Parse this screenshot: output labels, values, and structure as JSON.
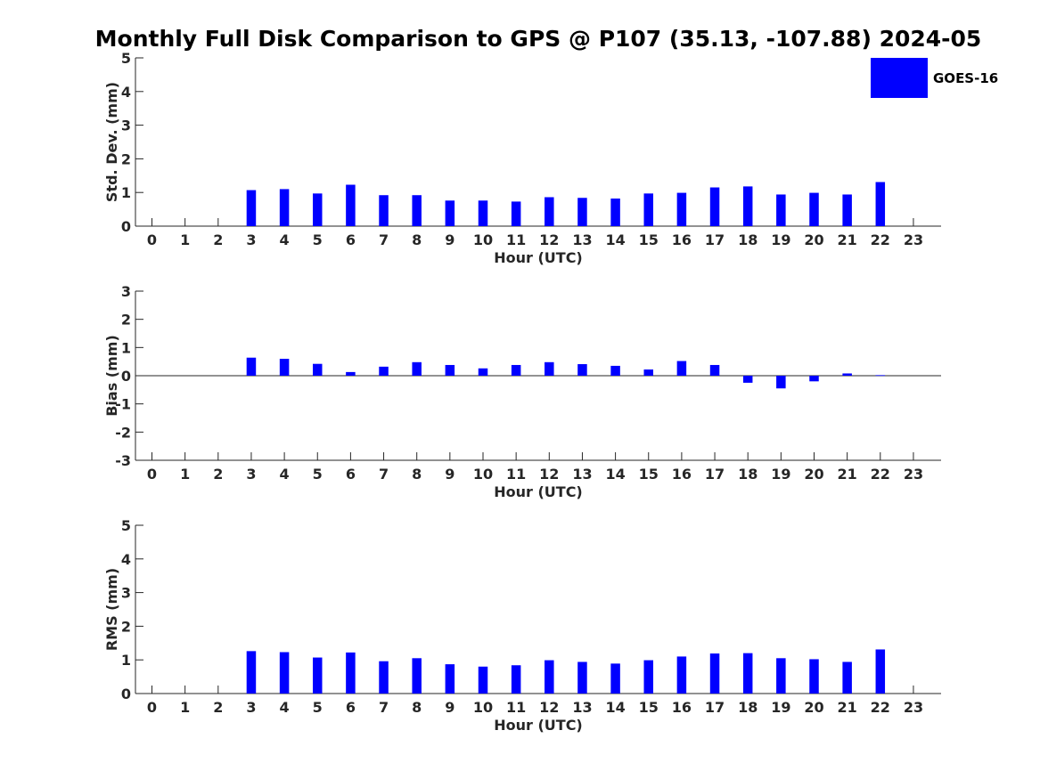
{
  "chart_data": {
    "type": "bar",
    "title": "Monthly Full Disk Comparison to GPS @ P107 (35.13, -107.88) 2024-05",
    "colors": {
      "bar": "#0000ff",
      "axis": "#262626"
    },
    "legend": {
      "label": "GOES-16",
      "placement": "top-right"
    },
    "categories": [
      "0",
      "1",
      "2",
      "3",
      "4",
      "5",
      "6",
      "7",
      "8",
      "9",
      "10",
      "11",
      "12",
      "13",
      "14",
      "15",
      "16",
      "17",
      "18",
      "19",
      "20",
      "21",
      "22",
      "23"
    ],
    "panels": [
      {
        "id": "std",
        "ylabel": "Std. Dev. (mm)",
        "xlabel": "Hour (UTC)",
        "ylim": [
          0,
          5
        ],
        "yticks": [
          "0",
          "1",
          "2",
          "3",
          "4",
          "5"
        ],
        "values": [
          null,
          null,
          null,
          1.07,
          1.1,
          0.97,
          1.23,
          0.92,
          0.92,
          0.76,
          0.76,
          0.73,
          0.86,
          0.84,
          0.82,
          0.97,
          0.99,
          1.15,
          1.18,
          0.94,
          0.99,
          0.94,
          1.31,
          null
        ]
      },
      {
        "id": "bias",
        "ylabel": "Bias (mm)",
        "xlabel": "Hour (UTC)",
        "ylim": [
          -3,
          3
        ],
        "yticks": [
          "-3",
          "-2",
          "-1",
          "0",
          "1",
          "2",
          "3"
        ],
        "values": [
          null,
          null,
          null,
          0.64,
          0.6,
          0.42,
          0.13,
          0.32,
          0.48,
          0.38,
          0.26,
          0.38,
          0.48,
          0.41,
          0.35,
          0.22,
          0.52,
          0.38,
          -0.25,
          -0.45,
          -0.2,
          0.08,
          0.02,
          null
        ]
      },
      {
        "id": "rms",
        "ylabel": "RMS (mm)",
        "xlabel": "Hour (UTC)",
        "ylim": [
          0,
          5
        ],
        "yticks": [
          "0",
          "1",
          "2",
          "3",
          "4",
          "5"
        ],
        "values": [
          null,
          null,
          null,
          1.26,
          1.23,
          1.07,
          1.22,
          0.96,
          1.05,
          0.87,
          0.8,
          0.84,
          0.99,
          0.94,
          0.89,
          0.99,
          1.1,
          1.19,
          1.2,
          1.05,
          1.02,
          0.94,
          1.31,
          null
        ]
      }
    ]
  }
}
